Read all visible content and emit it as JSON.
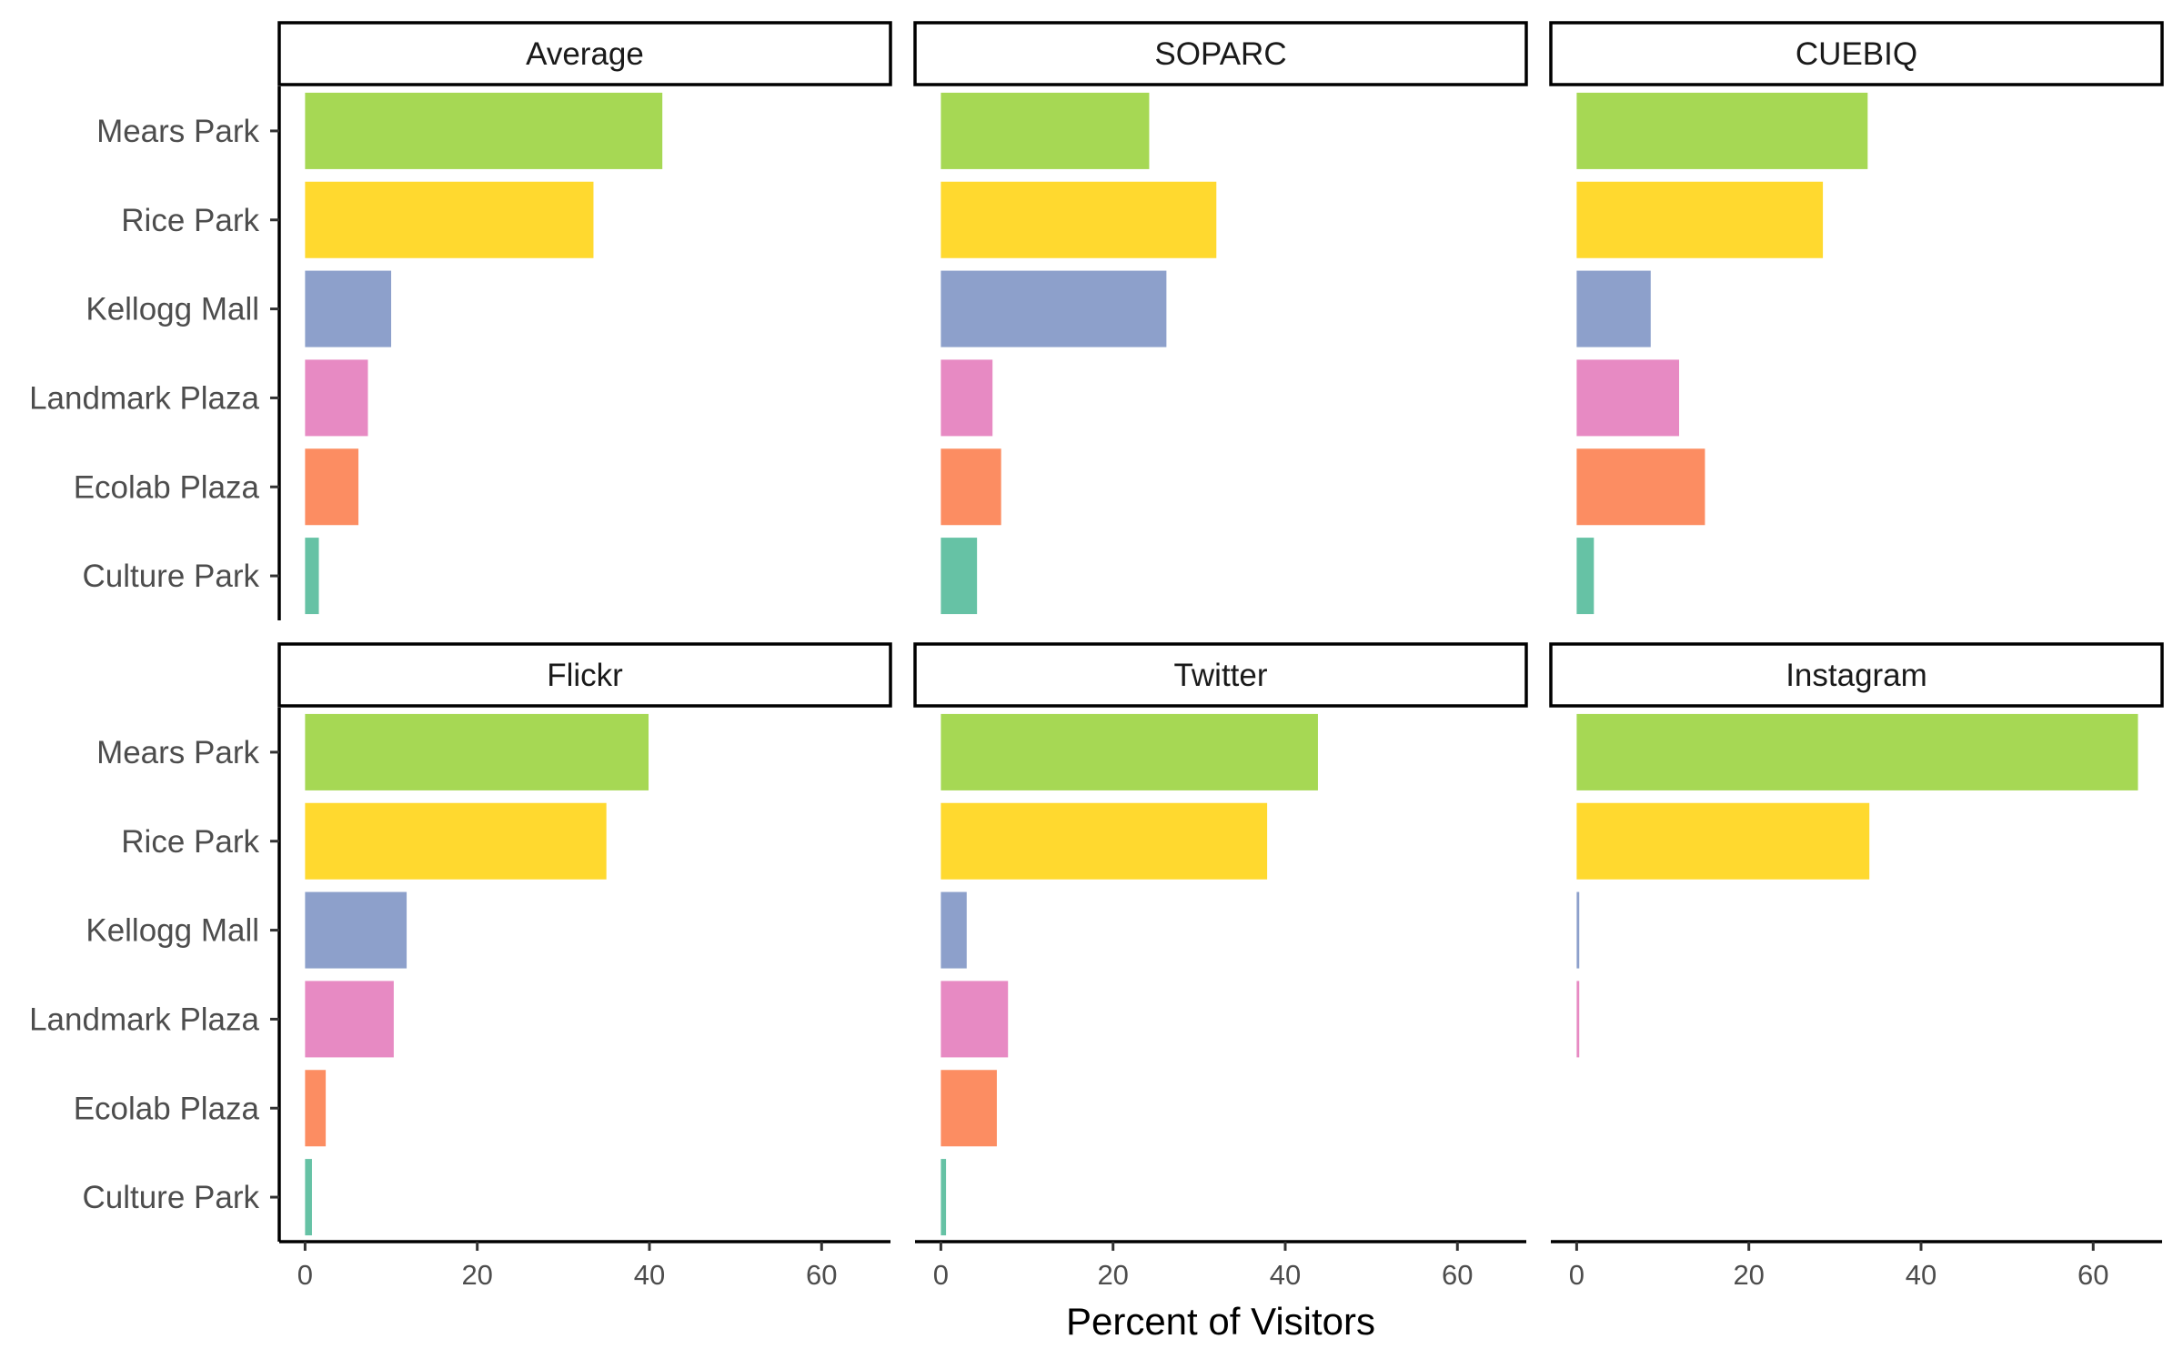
{
  "chart_data": {
    "type": "bar",
    "orientation": "horizontal",
    "xlabel": "Percent of Visitors",
    "ylabel": "",
    "xlim": [
      -3,
      68
    ],
    "xticks": [
      0,
      20,
      40,
      60
    ],
    "grid": false,
    "categories": [
      "Mears Park",
      "Rice Park",
      "Kellogg Mall",
      "Landmark Plaza",
      "Ecolab Plaza",
      "Culture Park"
    ],
    "category_colors": [
      "#a6d854",
      "#ffd92f",
      "#8da0cb",
      "#e78ac3",
      "#fc8d62",
      "#66c2a5"
    ],
    "facets": [
      {
        "name": "Average",
        "values": [
          41.5,
          33.5,
          10.0,
          7.3,
          6.2,
          1.6
        ]
      },
      {
        "name": "SOPARC",
        "values": [
          24.2,
          32.0,
          26.2,
          6.0,
          7.0,
          4.2
        ]
      },
      {
        "name": "CUEBIQ",
        "values": [
          33.8,
          28.6,
          8.6,
          11.9,
          14.9,
          2.0
        ]
      },
      {
        "name": "Flickr",
        "values": [
          39.9,
          35.0,
          11.8,
          10.3,
          2.4,
          0.8
        ]
      },
      {
        "name": "Twitter",
        "values": [
          43.8,
          37.9,
          3.0,
          7.8,
          6.5,
          0.6
        ]
      },
      {
        "name": "Instagram",
        "values": [
          65.2,
          34.0,
          0.3,
          0.3,
          0.0,
          0.0
        ]
      }
    ]
  }
}
